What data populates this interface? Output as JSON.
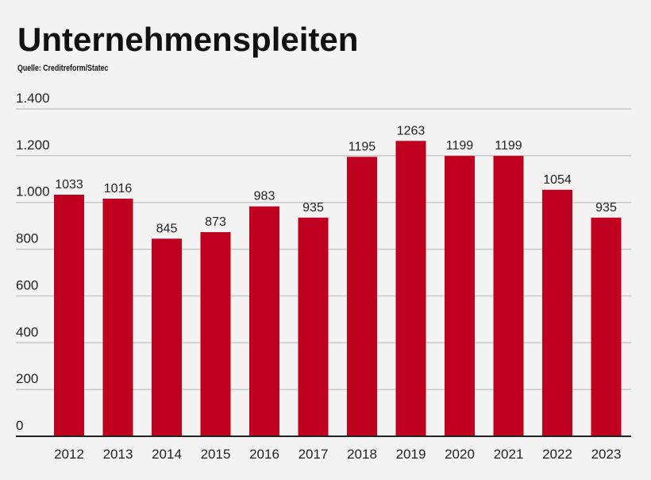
{
  "chart_data": {
    "type": "bar",
    "title": "Unternehmenspleiten",
    "subtitle": "Quelle: Creditreform/Statec",
    "categories": [
      "2012",
      "2013",
      "2014",
      "2015",
      "2016",
      "2017",
      "2018",
      "2019",
      "2020",
      "2021",
      "2022",
      "2023"
    ],
    "values": [
      1033,
      1016,
      845,
      873,
      983,
      935,
      1195,
      1263,
      1199,
      1199,
      1054,
      935
    ],
    "ylim": [
      0,
      1400
    ],
    "yticks": [
      0,
      200,
      400,
      600,
      800,
      1000,
      1200,
      1400
    ],
    "ytick_labels": [
      "0",
      "200",
      "400",
      "600",
      "800",
      "1.000",
      "1.200",
      "1.400"
    ],
    "grid": true,
    "bar_color": "#c0001f",
    "xlabel": "",
    "ylabel": ""
  }
}
